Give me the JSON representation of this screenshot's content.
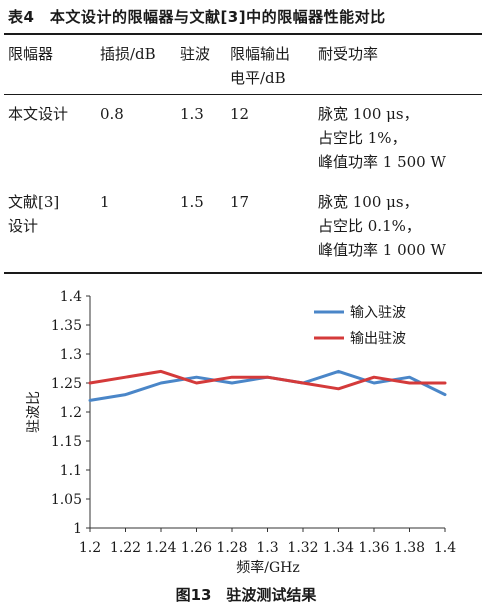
{
  "table": {
    "title": "表4　本文设计的限幅器与文献[3]中的限幅器性能对比",
    "headers": [
      "限幅器",
      "插损/dB",
      "驻波",
      "限幅输出",
      "电平/dB",
      "耐受功率"
    ],
    "rows": [
      {
        "name": [
          "本文设计"
        ],
        "loss": "0.8",
        "vswr": "1.3",
        "level": "12",
        "power": [
          "脉宽 100 μs，",
          "占空比 1%，",
          "峰值功率 1 500 W"
        ]
      },
      {
        "name": [
          "文献[3]",
          "设计"
        ],
        "loss": "1",
        "vswr": "1.5",
        "level": "17",
        "power": [
          "脉宽 100 μs，",
          "占空比 0.1%，",
          "峰值功率 1 000 W"
        ]
      }
    ]
  },
  "chart_data": {
    "type": "line",
    "xlabel": "频率/GHz",
    "ylabel": "驻波比",
    "x": [
      1.2,
      1.22,
      1.24,
      1.26,
      1.28,
      1.3,
      1.32,
      1.34,
      1.36,
      1.38,
      1.4
    ],
    "xticks": [
      "1.2",
      "1.22",
      "1.24",
      "1.26",
      "1.28",
      "1.3",
      "1.32",
      "1.34",
      "1.36",
      "1.38",
      "1.4"
    ],
    "ylim": [
      1,
      1.4
    ],
    "yticks": [
      "1",
      "1.05",
      "1.1",
      "1.15",
      "1.2",
      "1.25",
      "1.3",
      "1.35",
      "1.4"
    ],
    "series": [
      {
        "name": "输入驻波",
        "color": "#4a86c8",
        "values": [
          1.22,
          1.23,
          1.25,
          1.26,
          1.25,
          1.26,
          1.25,
          1.27,
          1.25,
          1.26,
          1.23
        ]
      },
      {
        "name": "输出驻波",
        "color": "#d43a3a",
        "values": [
          1.25,
          1.26,
          1.27,
          1.25,
          1.26,
          1.26,
          1.25,
          1.24,
          1.26,
          1.25,
          1.25
        ]
      }
    ],
    "legend": "top-right",
    "grid": false
  },
  "caption": "图13　驻波测试结果"
}
